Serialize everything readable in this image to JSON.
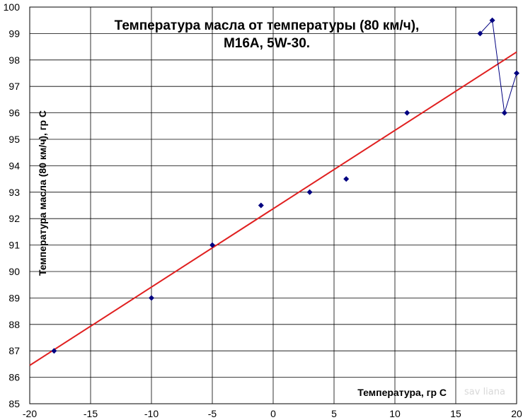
{
  "chart_data": {
    "type": "scatter",
    "title_lines": [
      "Температура масла от температуры (80 км/ч),",
      "M16A, 5W-30."
    ],
    "xlabel": "Температура, гр С",
    "ylabel": "Температура масла (80 км/ч), гр С",
    "xlim": [
      -20,
      20
    ],
    "ylim": [
      85,
      100
    ],
    "x_ticks": [
      -20,
      -15,
      -10,
      -5,
      0,
      5,
      10,
      15,
      20
    ],
    "y_ticks": [
      85,
      86,
      87,
      88,
      89,
      90,
      91,
      92,
      93,
      94,
      95,
      96,
      97,
      98,
      99,
      100
    ],
    "grid": true,
    "series": [
      {
        "marker": "diamond",
        "color": "#000080",
        "x": [
          -18,
          -10,
          -5,
          -1,
          3,
          6,
          11,
          17,
          18,
          19,
          20
        ],
        "y": [
          87,
          89,
          91,
          92.5,
          93,
          93.5,
          96,
          99,
          99.5,
          96,
          97.5
        ],
        "connected_segment": [
          17,
          18,
          19,
          20
        ]
      }
    ],
    "trendline": {
      "type": "linear",
      "color": "#e02020",
      "x": [
        -20,
        20
      ],
      "y": [
        86.45,
        98.3
      ]
    },
    "watermark": "sav liana"
  }
}
